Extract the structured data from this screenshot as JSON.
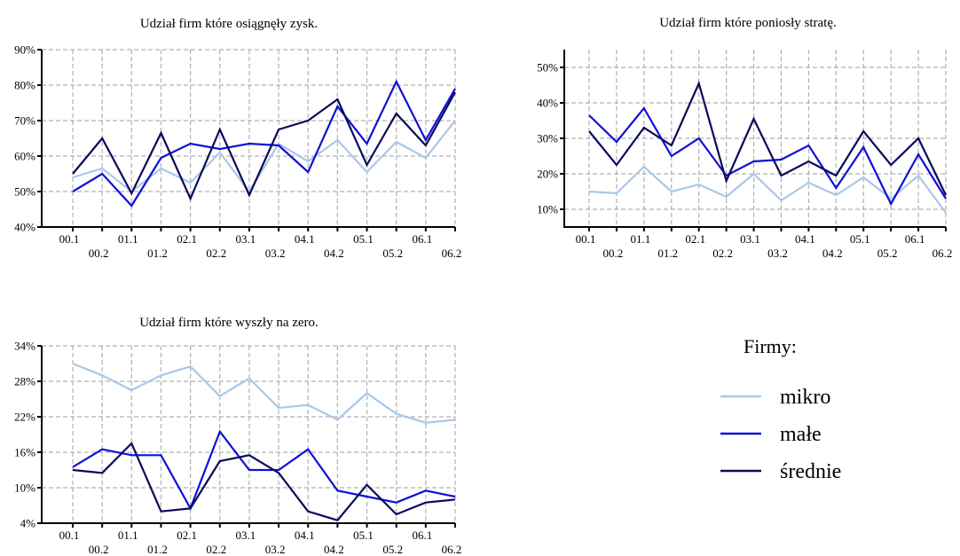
{
  "colors": {
    "mikro": "#a9c8e8",
    "male": "#1010d8",
    "srednie": "#0a0a5a",
    "grid": "#b0b0b0"
  },
  "legend": {
    "title": "Firmy:",
    "items": [
      {
        "label": "mikro",
        "color_key": "mikro"
      },
      {
        "label": "małe",
        "color_key": "male"
      },
      {
        "label": "średnie",
        "color_key": "srednie"
      }
    ]
  },
  "chart_data": [
    {
      "type": "line",
      "title": "Udział firm które osiągnęły zysk.",
      "x": [
        "00.1",
        "00.2",
        "01.1",
        "01.2",
        "02.1",
        "02.2",
        "03.1",
        "03.2",
        "04.1",
        "04.2",
        "05.1",
        "05.2",
        "06.1",
        "06.2"
      ],
      "ylim": [
        40,
        90
      ],
      "yticks": [
        40,
        50,
        60,
        70,
        80,
        90
      ],
      "ytick_labels": [
        "40%",
        "50%",
        "60%",
        "70%",
        "80%",
        "90%"
      ],
      "grid": true,
      "series": [
        {
          "name": "mikro",
          "color_key": "mikro",
          "values": [
            54,
            56.5,
            50,
            56.5,
            52.5,
            61,
            50,
            63.5,
            58.5,
            64.5,
            55.5,
            64,
            59.5,
            70
          ]
        },
        {
          "name": "małe",
          "color_key": "male",
          "values": [
            50,
            55,
            46,
            59.5,
            63.5,
            62,
            63.5,
            63,
            55.5,
            74,
            63.5,
            81,
            64.5,
            79
          ]
        },
        {
          "name": "średnie",
          "color_key": "srednie",
          "values": [
            55,
            65,
            49.5,
            66.5,
            48,
            67.5,
            49,
            67.5,
            70,
            76,
            57.5,
            72,
            63,
            78
          ]
        }
      ]
    },
    {
      "type": "line",
      "title": "Udział firm które poniosły stratę.",
      "x": [
        "00.1",
        "00.2",
        "01.1",
        "01.2",
        "02.1",
        "02.2",
        "03.1",
        "03.2",
        "04.1",
        "04.2",
        "05.1",
        "05.2",
        "06.1",
        "06.2"
      ],
      "ylim": [
        5,
        55
      ],
      "yticks": [
        10,
        20,
        30,
        40,
        50
      ],
      "ytick_labels": [
        "10%",
        "20%",
        "30%",
        "40%",
        "50%"
      ],
      "grid": true,
      "series": [
        {
          "name": "mikro",
          "color_key": "mikro",
          "values": [
            15,
            14.5,
            22,
            15,
            17,
            13.5,
            20,
            12.5,
            17.5,
            14,
            19,
            13,
            19.5,
            9
          ]
        },
        {
          "name": "małe",
          "color_key": "male",
          "values": [
            36.5,
            29,
            38.5,
            25,
            30,
            19.5,
            23.5,
            24,
            28,
            16,
            27.5,
            11.5,
            25.5,
            13
          ]
        },
        {
          "name": "średnie",
          "color_key": "srednie",
          "values": [
            32,
            22.5,
            33,
            28,
            45.5,
            18,
            35.5,
            19.5,
            23.5,
            19.5,
            32,
            22.5,
            30,
            14
          ]
        }
      ]
    },
    {
      "type": "line",
      "title": "Udział firm które wyszły na zero.",
      "x": [
        "00.1",
        "00.2",
        "01.1",
        "01.2",
        "02.1",
        "02.2",
        "03.1",
        "03.2",
        "04.1",
        "04.2",
        "05.1",
        "05.2",
        "06.1",
        "06.2"
      ],
      "ylim": [
        4,
        34
      ],
      "yticks": [
        4,
        10,
        16,
        22,
        28,
        34
      ],
      "ytick_labels": [
        "4%",
        "10%",
        "16%",
        "22%",
        "28%",
        "34%"
      ],
      "grid": true,
      "series": [
        {
          "name": "mikro",
          "color_key": "mikro",
          "values": [
            31,
            29,
            26.5,
            29,
            30.5,
            25.5,
            28.5,
            23.5,
            24,
            21.5,
            26,
            22.5,
            21,
            21.5
          ]
        },
        {
          "name": "małe",
          "color_key": "male",
          "values": [
            13.5,
            16.5,
            15.5,
            15.5,
            6.5,
            19.5,
            13,
            13,
            16.5,
            9.5,
            8.5,
            7.5,
            9.5,
            8.5
          ]
        },
        {
          "name": "średnie",
          "color_key": "srednie",
          "values": [
            13,
            12.5,
            17.5,
            6,
            6.5,
            14.5,
            15.5,
            12.5,
            6,
            4.5,
            10.5,
            5.5,
            7.5,
            8
          ]
        }
      ]
    }
  ]
}
